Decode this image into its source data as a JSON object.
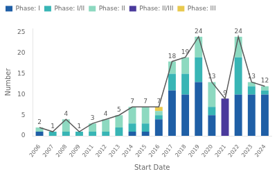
{
  "chart_data": {
    "type": "bar",
    "stacked": true,
    "xlabel": "Start Date",
    "ylabel": "Number",
    "categories": [
      "2006",
      "2007",
      "2008",
      "2009",
      "2011",
      "2012",
      "2013",
      "2014",
      "2015",
      "2016",
      "2017",
      "2018",
      "2019",
      "2020",
      "2021",
      "2022",
      "2023",
      "2024"
    ],
    "series": [
      {
        "name": "Phase: I",
        "color": "#1f5fa6",
        "values": [
          1,
          0,
          0,
          0,
          0,
          0,
          0,
          1,
          1,
          4,
          11,
          10,
          13,
          5,
          0,
          10,
          10,
          10
        ]
      },
      {
        "name": "Phase: I/II",
        "color": "#38b5b5",
        "values": [
          0,
          1,
          1,
          1,
          1,
          1,
          2,
          2,
          2,
          1,
          4,
          5,
          6,
          2,
          0,
          9,
          2,
          1
        ]
      },
      {
        "name": "Phase: II",
        "color": "#8dd9c0",
        "values": [
          1,
          0,
          3,
          0,
          2,
          3,
          3,
          4,
          4,
          1,
          3,
          4,
          5,
          6,
          0,
          5,
          1,
          1
        ]
      },
      {
        "name": "Phase: II/III",
        "color": "#4a3a9c",
        "values": [
          0,
          0,
          0,
          0,
          0,
          0,
          0,
          0,
          0,
          0,
          0,
          0,
          0,
          0,
          9,
          0,
          0,
          0
        ]
      },
      {
        "name": "Phase: III",
        "color": "#e8c94e",
        "values": [
          0,
          0,
          0,
          0,
          0,
          0,
          0,
          0,
          0,
          1,
          0,
          0,
          0,
          0,
          0,
          0,
          0,
          0
        ]
      },
      {
        "type": "line",
        "color": "#5a5a5a",
        "values": [
          2,
          1,
          4,
          1,
          3,
          4,
          5,
          7,
          7,
          7,
          18,
          19,
          24,
          13,
          9,
          24,
          13,
          12
        ],
        "data_labels": true
      }
    ],
    "ylim": [
      0,
      26
    ],
    "yticks": [
      0,
      5,
      10,
      15,
      20,
      25
    ],
    "grid": false,
    "legend": "top-left"
  }
}
